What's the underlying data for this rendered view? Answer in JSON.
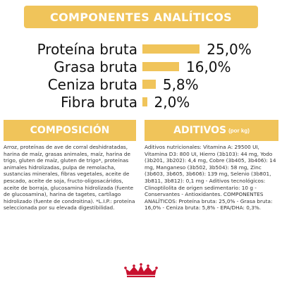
{
  "banner": {
    "title": "COMPONENTES ANALÍTICOS"
  },
  "nutrients": [
    {
      "label": "Proteína bruta",
      "value": "25,0%",
      "percent": 25.0
    },
    {
      "label": "Grasa bruta",
      "value": "16,0%",
      "percent": 16.0
    },
    {
      "label": "Ceniza bruta",
      "value": "5,8%",
      "percent": 5.8
    },
    {
      "label": "Fibra bruta",
      "value": "2,0%",
      "percent": 2.0
    }
  ],
  "composition": {
    "title": "COMPOSICIÓN",
    "text": "Arroz, proteínas de ave de corral deshidratadas, harina de maíz, grasas animales, maíz, harina de trigo, gluten de maíz, gluten de trigo*, proteínas animales hidrolizadas, pulpa de remolacha, sustancias minerales, fibras vegetales, aceite de pescado, aceite de soja, fructo-oligosacáridos, aceite de borraja, glucosamina hidrolizada (fuente de glucosamina), harina de tagetes, cartílago hidrolizado (fuente de condroitina). *L.I.P.: proteína seleccionada por su elevada digestibilidad."
  },
  "additives": {
    "title": "ADITIVOS",
    "subtitle": "(por kg)",
    "text": "Aditivos nutricionales: Vitamina A: 29500 UI, Vitamina D3: 800 UI, Hierro (3b103): 44 mg, Yodo (3b201, 3b202): 4,4 mg, Cobre (3b405, 3b406): 14 mg, Manganeso (3b502, 3b504): 58 mg, Zinc (3b603, 3b605, 3b606): 139 mg, Selenio (3b801, 3b811, 3b812): 0,1 mg - Aditivos tecnológicos: Clinoptilolita de origen sedimentario: 10 g - Conservantes - Antioxidantes. COMPONENTES ANALÍTICOS: Proteína bruta: 25,0% - Grasa bruta: 16,0% - Ceniza bruta: 5,8% - EPA/DHA: 0,3%."
  },
  "colors": {
    "accent": "#f0c45a",
    "logo": "#c8102e"
  },
  "icons": {
    "logo": "royal-canin-crown-logo"
  }
}
